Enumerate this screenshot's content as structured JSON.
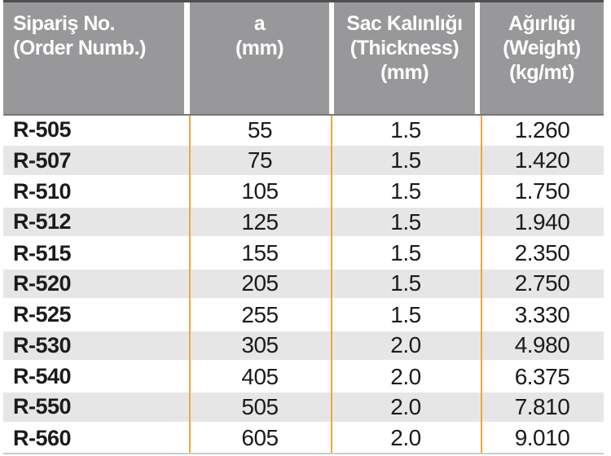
{
  "colors": {
    "header_bg": "#98989a",
    "header_text": "#ffffff",
    "stripe": "#e6e6e6",
    "divider_orange": "#eaa83e",
    "top_border": "#4e4e50",
    "header_bottom_edge": "#77777a",
    "bottom_border": "#c9cdd0",
    "body_text": "#1b1b1b"
  },
  "table": {
    "columns": [
      {
        "id": "order",
        "lines": [
          "Sipariş No.",
          "(Order Numb.)"
        ]
      },
      {
        "id": "a",
        "lines": [
          "a",
          "(mm)"
        ]
      },
      {
        "id": "thickness",
        "lines": [
          "Sac Kalınlığı",
          "(Thickness)",
          "(mm)"
        ]
      },
      {
        "id": "weight",
        "lines": [
          "Ağırlığı",
          "(Weight)",
          "(kg/mt)"
        ]
      }
    ],
    "rows": [
      {
        "order": "R-505",
        "a": "55",
        "thickness": "1.5",
        "weight": "1.260"
      },
      {
        "order": "R-507",
        "a": "75",
        "thickness": "1.5",
        "weight": "1.420"
      },
      {
        "order": "R-510",
        "a": "105",
        "thickness": "1.5",
        "weight": "1.750"
      },
      {
        "order": "R-512",
        "a": "125",
        "thickness": "1.5",
        "weight": "1.940"
      },
      {
        "order": "R-515",
        "a": "155",
        "thickness": "1.5",
        "weight": "2.350"
      },
      {
        "order": "R-520",
        "a": "205",
        "thickness": "1.5",
        "weight": "2.750"
      },
      {
        "order": "R-525",
        "a": "255",
        "thickness": "1.5",
        "weight": "3.330"
      },
      {
        "order": "R-530",
        "a": "305",
        "thickness": "2.0",
        "weight": "4.980"
      },
      {
        "order": "R-540",
        "a": "405",
        "thickness": "2.0",
        "weight": "6.375"
      },
      {
        "order": "R-550",
        "a": "505",
        "thickness": "2.0",
        "weight": "7.810"
      },
      {
        "order": "R-560",
        "a": "605",
        "thickness": "2.0",
        "weight": "9.010"
      }
    ]
  }
}
